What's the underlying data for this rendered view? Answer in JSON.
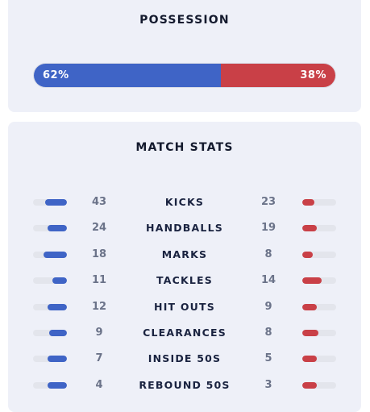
{
  "possession": {
    "title": "POSSESSION",
    "home_label": "62%",
    "away_label": "38%",
    "home_fraction": 0.62,
    "away_fraction": 0.38,
    "home_color": "#3f64c6",
    "away_color": "#c94047"
  },
  "match_stats": {
    "title": "MATCH STATS",
    "rows": [
      {
        "label": "KICKS",
        "home": "43",
        "away": "23",
        "home_fraction": 0.65,
        "away_fraction": 0.35
      },
      {
        "label": "HANDBALLS",
        "home": "24",
        "away": "19",
        "home_fraction": 0.56,
        "away_fraction": 0.44
      },
      {
        "label": "MARKS",
        "home": "18",
        "away": "8",
        "home_fraction": 0.69,
        "away_fraction": 0.31
      },
      {
        "label": "TACKLES",
        "home": "11",
        "away": "14",
        "home_fraction": 0.44,
        "away_fraction": 0.56
      },
      {
        "label": "HIT OUTS",
        "home": "12",
        "away": "9",
        "home_fraction": 0.57,
        "away_fraction": 0.43
      },
      {
        "label": "CLEARANCES",
        "home": "9",
        "away": "8",
        "home_fraction": 0.53,
        "away_fraction": 0.47
      },
      {
        "label": "INSIDE 50S",
        "home": "7",
        "away": "5",
        "home_fraction": 0.58,
        "away_fraction": 0.42
      },
      {
        "label": "REBOUND 50S",
        "home": "4",
        "away": "3",
        "home_fraction": 0.57,
        "away_fraction": 0.43
      }
    ]
  }
}
